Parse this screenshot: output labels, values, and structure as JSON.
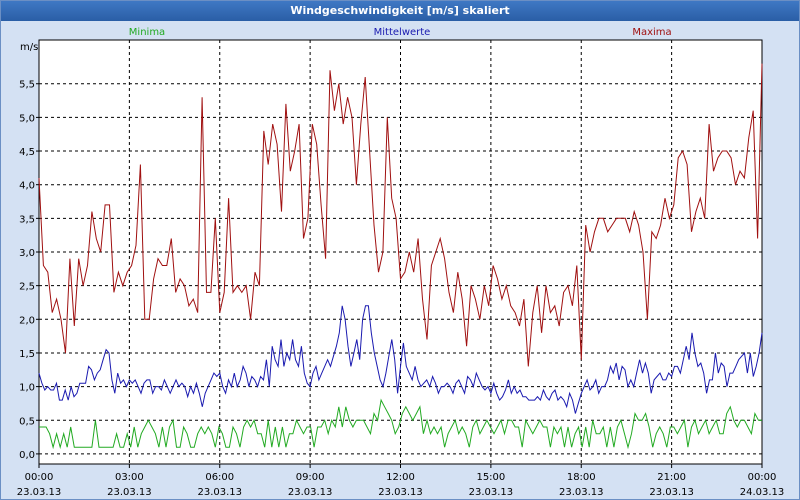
{
  "window": {
    "title": "Windgeschwindigkeit [m/s] skaliert"
  },
  "colors": {
    "minima": "#22aa22",
    "mittelwerte": "#1a1ab0",
    "maxima": "#a01010",
    "background": "#d4e1f3",
    "plot_background": "#ffffff",
    "titlebar": "#2f6bb8"
  },
  "chart_data": {
    "type": "line",
    "title": "Windgeschwindigkeit [m/s] skaliert",
    "ylabel": "m/s",
    "xlabel": "",
    "ylim": [
      -0.15,
      6.15
    ],
    "xlim": [
      0,
      24
    ],
    "grid": true,
    "legend_placement": "top",
    "y_ticks": [
      "0,0",
      "0,5",
      "1,0",
      "1,5",
      "2,0",
      "2,5",
      "3,0",
      "3,5",
      "4,0",
      "4,5",
      "5,0",
      "5,5"
    ],
    "x_ticks": [
      {
        "time": "00:00",
        "date": "23.03.13"
      },
      {
        "time": "03:00",
        "date": "23.03.13"
      },
      {
        "time": "06:00",
        "date": "23.03.13"
      },
      {
        "time": "09:00",
        "date": "23.03.13"
      },
      {
        "time": "12:00",
        "date": "23.03.13"
      },
      {
        "time": "15:00",
        "date": "23.03.13"
      },
      {
        "time": "18:00",
        "date": "23.03.13"
      },
      {
        "time": "21:00",
        "date": "23.03.13"
      },
      {
        "time": "00:00",
        "date": "24.03.13"
      }
    ],
    "series": [
      {
        "name": "Minima",
        "color": "#22aa22",
        "values": [
          0.4,
          0.4,
          0.4,
          0.3,
          0.1,
          0.3,
          0.1,
          0.3,
          0.1,
          0.4,
          0.1,
          0.1,
          0.1,
          0.1,
          0.1,
          0.1,
          0.5,
          0.1,
          0.1,
          0.1,
          0.1,
          0.1,
          0.3,
          0.1,
          0.1,
          0.3,
          0.1,
          0.4,
          0.1,
          0.3,
          0.4,
          0.5,
          0.4,
          0.3,
          0.1,
          0.4,
          0.1,
          0.4,
          0.5,
          0.1,
          0.1,
          0.4,
          0.3,
          0.1,
          0.1,
          0.3,
          0.4,
          0.3,
          0.4,
          0.3,
          0.1,
          0.4,
          0.3,
          0.1,
          0.1,
          0.4,
          0.3,
          0.1,
          0.4,
          0.5,
          0.4,
          0.5,
          0.3,
          0.3,
          0.1,
          0.5,
          0.1,
          0.4,
          0.1,
          0.4,
          0.1,
          0.3,
          0.3,
          0.5,
          0.4,
          0.3,
          0.4,
          0.4,
          0.1,
          0.4,
          0.4,
          0.5,
          0.3,
          0.5,
          0.4,
          0.7,
          0.4,
          0.7,
          0.5,
          0.4,
          0.5,
          0.5,
          0.5,
          0.4,
          0.3,
          0.6,
          0.5,
          0.8,
          0.7,
          0.6,
          0.5,
          0.3,
          0.4,
          0.6,
          0.7,
          0.6,
          0.5,
          0.6,
          0.7,
          0.3,
          0.5,
          0.3,
          0.4,
          0.3,
          0.4,
          0.1,
          0.3,
          0.4,
          0.5,
          0.3,
          0.4,
          0.3,
          0.1,
          0.4,
          0.5,
          0.3,
          0.4,
          0.5,
          0.4,
          0.3,
          0.4,
          0.5,
          0.3,
          0.5,
          0.5,
          0.4,
          0.4,
          0.1,
          0.5,
          0.4,
          0.3,
          0.4,
          0.5,
          0.4,
          0.4,
          0.1,
          0.4,
          0.3,
          0.4,
          0.1,
          0.4,
          0.1,
          0.3,
          0.4,
          0.1,
          0.4,
          0.1,
          0.5,
          0.3,
          0.3,
          0.4,
          0.1,
          0.4,
          0.1,
          0.4,
          0.5,
          0.3,
          0.1,
          0.3,
          0.6,
          0.5,
          0.5,
          0.6,
          0.4,
          0.1,
          0.3,
          0.4,
          0.3,
          0.1,
          0.4,
          0.4,
          0.3,
          0.4,
          0.5,
          0.1,
          0.4,
          0.5,
          0.3,
          0.4,
          0.5,
          0.3,
          0.4,
          0.5,
          0.3,
          0.3,
          0.6,
          0.7,
          0.5,
          0.4,
          0.5,
          0.5,
          0.4,
          0.3,
          0.6,
          0.5,
          0.5
        ]
      },
      {
        "name": "Mittelwerte",
        "color": "#1a1ab0",
        "values": [
          1.2,
          1.05,
          0.95,
          1.0,
          0.95,
          0.95,
          1.05,
          0.8,
          0.8,
          0.95,
          0.8,
          1.0,
          0.85,
          0.9,
          1.05,
          1.05,
          1.05,
          1.3,
          1.25,
          1.1,
          1.2,
          1.25,
          1.4,
          1.55,
          1.5,
          1.1,
          0.9,
          1.2,
          1.05,
          1.1,
          1.0,
          1.1,
          1.05,
          1.1,
          1.0,
          0.9,
          1.05,
          1.1,
          1.1,
          0.9,
          1.0,
          1.0,
          0.95,
          1.1,
          1.0,
          0.9,
          1.0,
          1.1,
          1.0,
          1.05,
          1.0,
          0.85,
          1.0,
          0.9,
          1.05,
          0.9,
          0.7,
          0.9,
          1.0,
          1.1,
          1.2,
          1.15,
          1.2,
          1.0,
          0.9,
          1.1,
          1.0,
          1.2,
          1.0,
          1.1,
          1.3,
          1.2,
          1.0,
          1.15,
          1.1,
          1.0,
          1.15,
          1.1,
          1.4,
          1.0,
          1.6,
          1.4,
          1.3,
          1.7,
          1.3,
          1.5,
          1.4,
          1.7,
          1.4,
          1.3,
          1.6,
          1.2,
          1.05,
          1.0,
          1.2,
          1.3,
          1.1,
          1.2,
          1.3,
          1.4,
          1.3,
          1.45,
          1.6,
          1.8,
          2.2,
          2.0,
          1.6,
          1.3,
          1.5,
          1.7,
          1.4,
          2.0,
          2.2,
          2.2,
          1.8,
          1.5,
          1.3,
          1.1,
          1.0,
          1.2,
          1.45,
          1.7,
          1.4,
          0.9,
          1.3,
          1.65,
          1.3,
          1.2,
          1.1,
          1.3,
          1.1,
          1.0,
          1.05,
          1.1,
          1.0,
          1.15,
          1.05,
          0.9,
          1.0,
          1.0,
          1.05,
          1.0,
          0.9,
          1.05,
          1.1,
          1.0,
          0.9,
          1.15,
          1.1,
          1.0,
          1.2,
          1.1,
          1.0,
          0.95,
          1.0,
          0.9,
          1.05,
          0.9,
          0.8,
          0.85,
          0.95,
          1.1,
          0.9,
          1.0,
          0.9,
          0.95,
          0.85,
          0.85,
          0.8,
          0.8,
          0.8,
          0.85,
          0.8,
          0.95,
          0.85,
          0.8,
          0.9,
          0.95,
          0.8,
          0.85,
          0.8,
          0.7,
          0.9,
          0.8,
          0.6,
          0.75,
          0.9,
          1.0,
          1.1,
          0.95,
          1.0,
          1.1,
          0.9,
          1.0,
          1.0,
          1.1,
          1.3,
          1.2,
          1.35,
          1.1,
          1.3,
          1.25,
          1.0,
          1.1,
          1.0,
          1.2,
          1.4,
          1.2,
          1.35,
          1.2,
          0.9,
          1.1,
          1.15,
          1.2,
          1.1,
          1.1,
          1.2,
          1.15,
          1.3,
          1.3,
          1.2,
          1.4,
          1.6,
          1.4,
          1.8,
          1.5,
          1.3,
          1.35,
          1.2,
          0.9,
          1.1,
          1.1,
          1.5,
          1.2,
          1.35,
          1.3,
          1.0,
          1.2,
          1.2,
          1.3,
          1.4,
          1.45,
          1.5,
          1.2,
          1.5,
          1.15,
          1.3,
          1.5,
          1.8
        ]
      },
      {
        "name": "Maxima",
        "color": "#a01010",
        "values": [
          4.1,
          2.8,
          2.7,
          2.1,
          2.3,
          2.0,
          1.5,
          2.9,
          1.9,
          2.9,
          2.5,
          2.8,
          3.6,
          3.2,
          3.0,
          3.7,
          3.7,
          2.4,
          2.7,
          2.5,
          2.7,
          2.8,
          3.1,
          4.3,
          2.0,
          2.0,
          2.6,
          2.9,
          2.8,
          2.8,
          3.2,
          2.4,
          2.6,
          2.5,
          2.2,
          2.3,
          2.1,
          5.3,
          2.4,
          2.4,
          3.5,
          2.1,
          2.4,
          3.8,
          2.4,
          2.5,
          2.4,
          2.5,
          2.0,
          2.7,
          2.5,
          4.8,
          4.3,
          4.9,
          4.6,
          3.6,
          5.2,
          4.2,
          4.5,
          4.9,
          3.2,
          3.5,
          4.9,
          4.6,
          3.7,
          2.9,
          5.7,
          5.1,
          5.5,
          4.9,
          5.3,
          5.0,
          4.0,
          4.9,
          5.6,
          4.5,
          3.4,
          2.7,
          3.0,
          5.0,
          3.8,
          3.5,
          2.6,
          2.7,
          3.0,
          2.7,
          3.2,
          2.3,
          1.7,
          2.8,
          3.0,
          3.2,
          2.9,
          2.4,
          2.1,
          2.7,
          2.3,
          1.6,
          2.5,
          2.3,
          2.0,
          2.5,
          2.2,
          2.8,
          2.6,
          2.3,
          2.5,
          2.2,
          2.1,
          1.9,
          2.3,
          1.3,
          2.1,
          2.5,
          1.8,
          2.5,
          2.1,
          2.2,
          1.9,
          2.4,
          2.5,
          2.2,
          2.8,
          1.4,
          3.4,
          3.0,
          3.3,
          3.5,
          3.5,
          3.3,
          3.4,
          3.5,
          3.5,
          3.5,
          3.3,
          3.6,
          3.4,
          3.0,
          2.0,
          3.3,
          3.2,
          3.4,
          3.8,
          3.5,
          3.7,
          4.4,
          4.5,
          4.3,
          3.3,
          3.6,
          3.8,
          3.5,
          4.9,
          4.2,
          4.4,
          4.5,
          4.5,
          4.4,
          4.0,
          4.2,
          4.1,
          4.7,
          5.1,
          3.2,
          5.8
        ]
      }
    ]
  }
}
